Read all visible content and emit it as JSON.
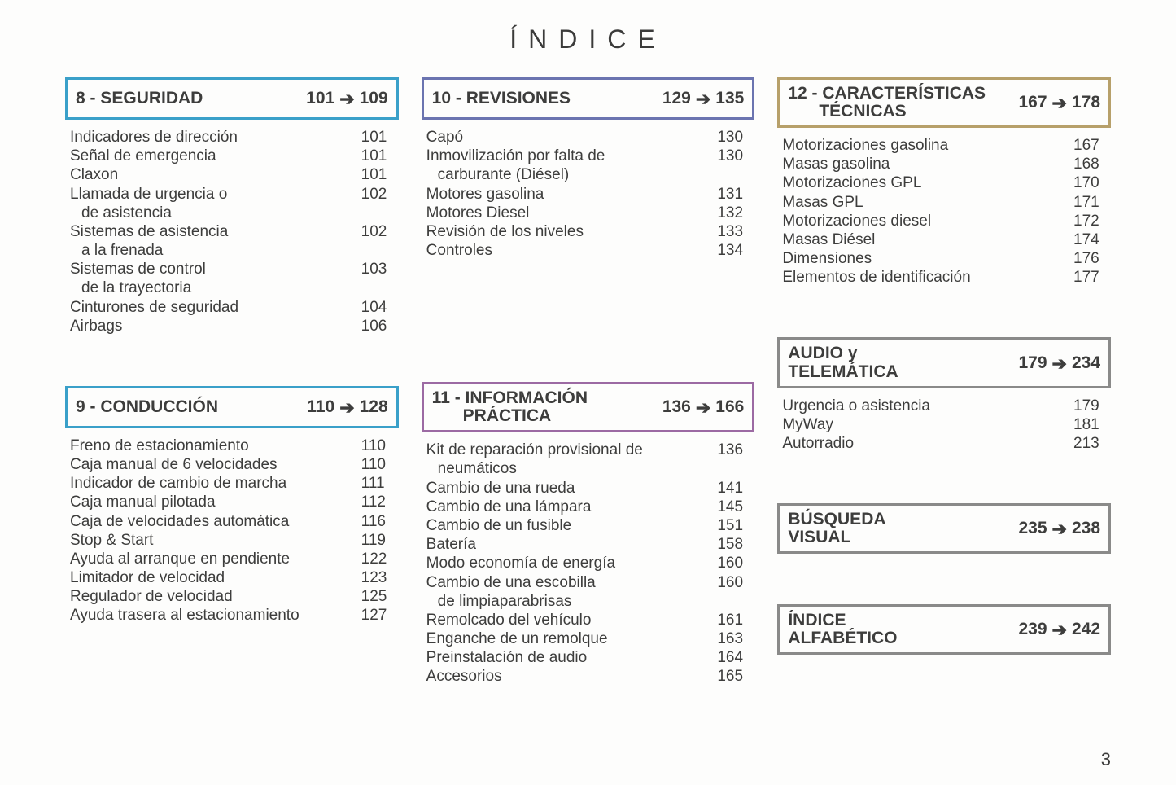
{
  "title": "ÍNDICE",
  "pageNumber": "3",
  "colors": {
    "s8": "#3aa0c9",
    "s9": "#3aa0c9",
    "s10": "#6b74b0",
    "s11": "#9c6aa3",
    "s12": "#b7a06a",
    "audio": "#8a8a89",
    "visual": "#8a8a89",
    "alpha": "#8a8a89"
  },
  "sections": {
    "s8": {
      "title": "8 - SEGURIDAD",
      "rangeStart": "101",
      "rangeEnd": "109",
      "items": [
        {
          "label": "Indicadores de dirección",
          "page": "101"
        },
        {
          "label": "Señal de emergencia",
          "page": "101"
        },
        {
          "label": "Claxon",
          "page": "101"
        },
        {
          "label": "Llamada de urgencia o",
          "cont": "de asistencia",
          "page": "102"
        },
        {
          "label": "Sistemas de asistencia",
          "cont": "a la frenada",
          "page": "102"
        },
        {
          "label": "Sistemas de control",
          "cont": "de la trayectoria",
          "page": "103"
        },
        {
          "label": "Cinturones de seguridad",
          "page": "104"
        },
        {
          "label": "Airbags",
          "page": "106"
        }
      ]
    },
    "s9": {
      "title": "9 - CONDUCCIÓN",
      "rangeStart": "110",
      "rangeEnd": "128",
      "items": [
        {
          "label": "Freno de estacionamiento",
          "page": "110"
        },
        {
          "label": "Caja manual de 6 velocidades",
          "page": "110"
        },
        {
          "label": "Indicador de cambio de marcha",
          "page": "111"
        },
        {
          "label": "Caja manual pilotada",
          "page": "112"
        },
        {
          "label": "Caja de velocidades automática",
          "page": "116"
        },
        {
          "label": "Stop & Start",
          "page": "119"
        },
        {
          "label": "Ayuda al arranque en pendiente",
          "page": "122"
        },
        {
          "label": "Limitador de velocidad",
          "page": "123"
        },
        {
          "label": "Regulador de velocidad",
          "page": "125"
        },
        {
          "label": "Ayuda trasera al estacionamiento",
          "page": "127"
        }
      ]
    },
    "s10": {
      "title": "10 - REVISIONES",
      "rangeStart": "129",
      "rangeEnd": "135",
      "items": [
        {
          "label": "Capó",
          "page": "130"
        },
        {
          "label": "Inmovilización por falta de",
          "cont": "carburante (Diésel)",
          "page": "130"
        },
        {
          "label": "Motores gasolina",
          "page": "131"
        },
        {
          "label": "Motores Diesel",
          "page": "132"
        },
        {
          "label": "Revisión de los niveles",
          "page": "133"
        },
        {
          "label": "Controles",
          "page": "134"
        }
      ]
    },
    "s11": {
      "title": "11 - INFORMACIÓN",
      "titleLine2": "PRÁCTICA",
      "rangeStart": "136",
      "rangeEnd": "166",
      "items": [
        {
          "label": "Kit de reparación provisional de",
          "cont": "neumáticos",
          "page": "136"
        },
        {
          "label": "Cambio de una rueda",
          "page": "141"
        },
        {
          "label": "Cambio de una lámpara",
          "page": "145"
        },
        {
          "label": "Cambio de un fusible",
          "page": "151"
        },
        {
          "label": "Batería",
          "page": "158"
        },
        {
          "label": "Modo economía de energía",
          "page": "160"
        },
        {
          "label": "Cambio de una escobilla",
          "cont": "de limpiaparabrisas",
          "page": "160"
        },
        {
          "label": "Remolcado del vehículo",
          "page": "161"
        },
        {
          "label": "Enganche de un remolque",
          "page": "163"
        },
        {
          "label": "Preinstalación de audio",
          "page": "164"
        },
        {
          "label": "Accesorios",
          "page": "165"
        }
      ]
    },
    "s12": {
      "title": "12 - CARACTERÍSTICAS",
      "titleLine2": "TÉCNICAS",
      "rangeStart": "167",
      "rangeEnd": "178",
      "items": [
        {
          "label": "Motorizaciones gasolina",
          "page": "167"
        },
        {
          "label": "Masas gasolina",
          "page": "168"
        },
        {
          "label": "Motorizaciones GPL",
          "page": "170"
        },
        {
          "label": "Masas GPL",
          "page": "171"
        },
        {
          "label": "Motorizaciones diesel",
          "page": "172"
        },
        {
          "label": "Masas Diésel",
          "page": "174"
        },
        {
          "label": "Dimensiones",
          "page": "176"
        },
        {
          "label": "Elementos de identificación",
          "page": "177"
        }
      ]
    },
    "audio": {
      "title": "AUDIO y",
      "titleLine2": "TELEMÁTICA",
      "rangeStart": "179",
      "rangeEnd": "234",
      "items": [
        {
          "label": "Urgencia o asistencia",
          "page": "179"
        },
        {
          "label": "MyWay",
          "page": "181"
        },
        {
          "label": "Autorradio",
          "page": "213"
        }
      ]
    },
    "visual": {
      "title": "BÚSQUEDA",
      "titleLine2": "VISUAL",
      "rangeStart": "235",
      "rangeEnd": "238",
      "items": []
    },
    "alpha": {
      "title": "ÍNDICE",
      "titleLine2": "ALFABÉTICO",
      "rangeStart": "239",
      "rangeEnd": "242",
      "items": []
    }
  }
}
